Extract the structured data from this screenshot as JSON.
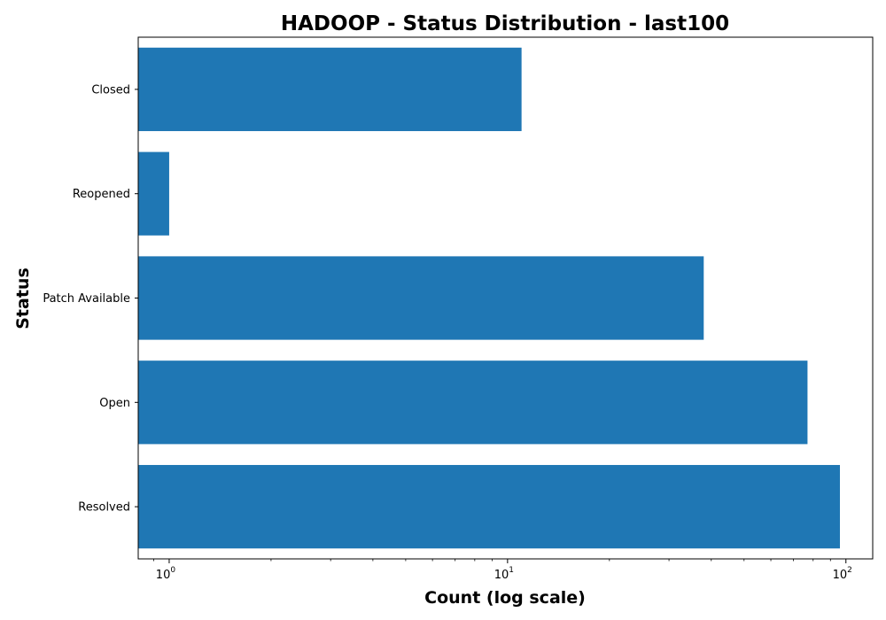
{
  "chart_data": {
    "type": "bar",
    "orientation": "horizontal",
    "title": "HADOOP - Status Distribution - last100",
    "xlabel": "Count (log scale)",
    "ylabel": "Status",
    "x_scale": "log",
    "xlim": [
      0.81,
      120
    ],
    "x_ticks": [
      {
        "value": 1,
        "base": "10",
        "exp": "0"
      },
      {
        "value": 10,
        "base": "10",
        "exp": "1"
      },
      {
        "value": 100,
        "base": "10",
        "exp": "2"
      }
    ],
    "categories": [
      "Closed",
      "Reopened",
      "Patch Available",
      "Open",
      "Resolved"
    ],
    "values": [
      11,
      1,
      38,
      77,
      96
    ],
    "bar_color": "#1f77b4",
    "grid": false
  }
}
